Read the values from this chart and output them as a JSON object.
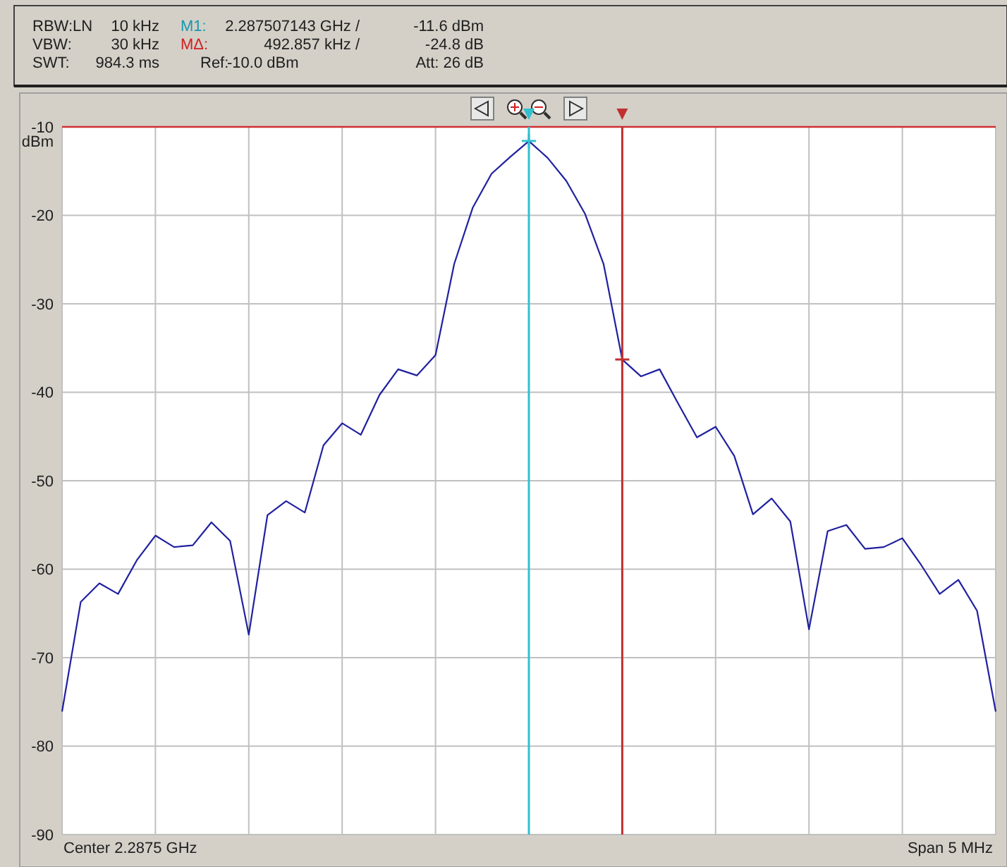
{
  "chart_data": {
    "type": "line",
    "ylabel": "dBm",
    "annotations": [
      "RBW:LN",
      "10 kHz",
      "M1:",
      "2.287507143 GHz /",
      "-11.6 dBm",
      "VBW:",
      "30 kHz",
      "MΔ:",
      "492.857 kHz /",
      "-24.8 dB",
      "SWT:",
      "984.3 ms",
      "Ref:",
      "-10.0 dBm",
      "Att: 26 dB",
      "Center 2.2875 GHz",
      "Span 5 MHz"
    ],
    "categories": [
      null,
      null,
      null,
      null,
      null,
      null,
      null,
      null,
      null,
      null,
      null,
      null,
      null,
      null,
      null,
      null,
      null,
      null,
      null,
      null,
      null,
      null,
      null,
      null,
      null,
      null,
      null,
      null,
      null,
      null,
      null,
      null,
      null,
      null,
      null,
      null,
      null,
      null,
      null,
      null,
      null,
      null,
      null,
      null,
      null,
      null,
      null,
      null,
      null,
      null,
      null
    ],
    "ylim": [
      -90,
      -10
    ],
    "yticks": [
      -10,
      -20,
      -30,
      -40,
      -50,
      -60,
      -70,
      -80,
      -90
    ],
    "grid": true,
    "series": [
      {
        "type": "line",
        "color": "#2020a0",
        "values": [
          -76.1,
          -63.7,
          -61.6,
          -62.8,
          -59.0,
          -56.2,
          -57.5,
          -57.3,
          -54.7,
          -56.8,
          -67.4,
          -53.9,
          -52.3,
          -53.6,
          -46.0,
          -43.5,
          -44.8,
          -40.3,
          -37.4,
          -38.1,
          -35.8,
          -25.5,
          -19.1,
          -15.3,
          -13.4,
          -11.6,
          -13.5,
          -16.1,
          -19.8,
          -25.5,
          -36.3,
          -38.2,
          -37.4,
          -41.3,
          -45.1,
          -43.9,
          -47.2,
          -53.8,
          -52.0,
          -54.6,
          -66.8,
          -55.7,
          -55.0,
          -57.7,
          -57.5,
          -56.5,
          -59.5,
          -62.8,
          -61.2,
          -64.7,
          -76.1
        ]
      },
      {
        "type": "scatter",
        "marker": "cross",
        "color": "#30c0d0",
        "values": [
          null,
          null,
          null,
          null,
          null,
          null,
          null,
          null,
          null,
          null,
          null,
          null,
          null,
          null,
          null,
          null,
          null,
          null,
          null,
          null,
          null,
          null,
          null,
          null,
          null,
          -11.6,
          null,
          null,
          null,
          null,
          null,
          null,
          null,
          null,
          null,
          null,
          null,
          null,
          null,
          null,
          null,
          null,
          null,
          null,
          null,
          null,
          null,
          null,
          null,
          null,
          null
        ]
      },
      {
        "type": "scatter",
        "marker": "cross",
        "color": "#c03030",
        "values": [
          null,
          null,
          null,
          null,
          null,
          null,
          null,
          null,
          null,
          null,
          null,
          null,
          null,
          null,
          null,
          null,
          null,
          null,
          null,
          null,
          null,
          null,
          null,
          null,
          null,
          null,
          null,
          null,
          null,
          null,
          -36.3,
          null,
          null,
          null,
          null,
          null,
          null,
          null,
          null,
          null,
          null,
          null,
          null,
          null,
          null,
          null,
          null,
          null,
          null,
          null,
          null
        ]
      }
    ],
    "ref_lines": [
      {
        "axis": "y",
        "value": -10,
        "color": "#d03030"
      }
    ]
  }
}
